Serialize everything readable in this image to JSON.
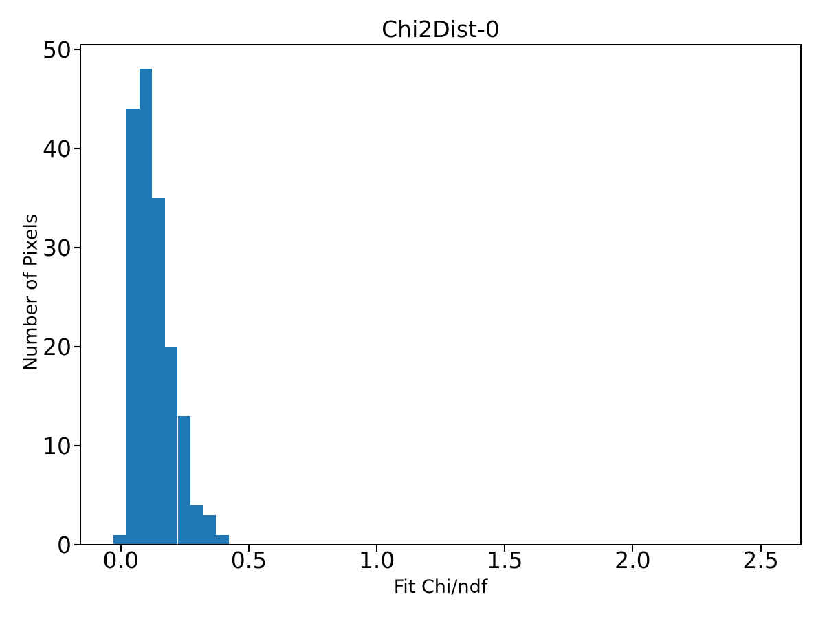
{
  "figure": {
    "title": "Chi2Dist-0"
  },
  "chart_data": {
    "type": "bar",
    "subtype": "histogram",
    "title": "Chi2Dist-0",
    "xlabel": "Fit Chi/ndf",
    "ylabel": "Number of Pixels",
    "bar_color": "#1f77b4",
    "text_color": "#000000",
    "background_color": "#ffffff",
    "bin_start": -0.028,
    "bin_width": 0.05,
    "bin_edges": [
      -0.028,
      0.022,
      0.072,
      0.122,
      0.172,
      0.222,
      0.272,
      0.322,
      0.372,
      0.422
    ],
    "counts": [
      1,
      44,
      48,
      35,
      20,
      13,
      4,
      3,
      1
    ],
    "total_count": 169,
    "xlim": [
      -0.158,
      2.657
    ],
    "ylim": [
      0,
      50.45
    ],
    "xticks": [
      0.0,
      0.5,
      1.0,
      1.5,
      2.0,
      2.5
    ],
    "xtick_labels": [
      "0.0",
      "0.5",
      "1.0",
      "1.5",
      "2.0",
      "2.5"
    ],
    "yticks": [
      0,
      10,
      20,
      30,
      40,
      50
    ],
    "ytick_labels": [
      "0",
      "10",
      "20",
      "30",
      "40",
      "50"
    ],
    "grid": false,
    "legend": null
  }
}
